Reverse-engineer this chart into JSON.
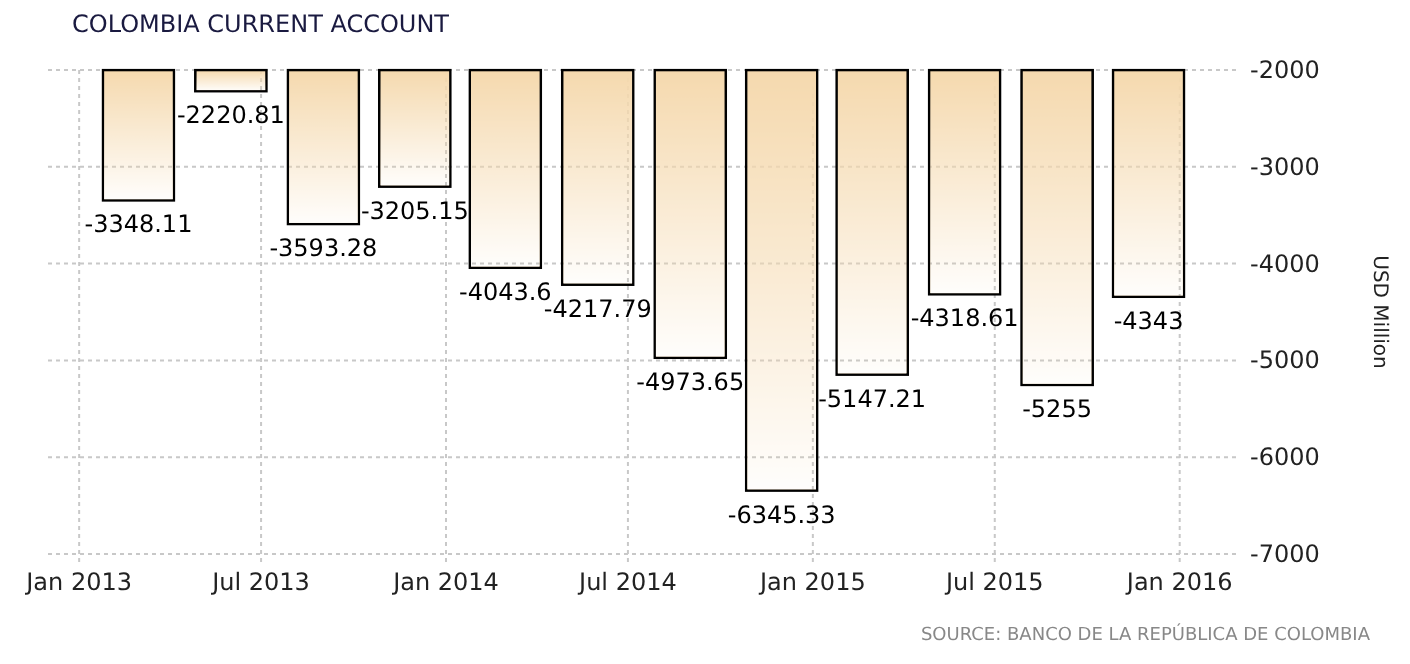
{
  "chart_data": {
    "type": "bar",
    "title": "COLOMBIA CURRENT ACCOUNT",
    "ylabel": "USD Million",
    "x": [
      "2013-03",
      "2013-06",
      "2013-09",
      "2013-12",
      "2014-03",
      "2014-06",
      "2014-09",
      "2014-12",
      "2015-03",
      "2015-06",
      "2015-09",
      "2015-12"
    ],
    "series": [
      {
        "color": "#f5d9ae",
        "values": [
          -3348.11,
          -2220.81,
          -3593.28,
          -3205.15,
          -4043.6,
          -4217.79,
          -4973.65,
          -6345.33,
          -5147.21,
          -4318.61,
          -5255,
          -4343
        ]
      }
    ],
    "data_labels": true,
    "xlim": [
      "2012-12",
      "2016-03"
    ],
    "xticks": [
      {
        "value": "2013-01",
        "label": "Jan 2013"
      },
      {
        "value": "2013-07",
        "label": "Jul 2013"
      },
      {
        "value": "2014-01",
        "label": "Jan 2014"
      },
      {
        "value": "2014-07",
        "label": "Jul 2014"
      },
      {
        "value": "2015-01",
        "label": "Jan 2015"
      },
      {
        "value": "2015-07",
        "label": "Jul 2015"
      },
      {
        "value": "2016-01",
        "label": "Jan 2016"
      }
    ],
    "ylim": [
      -7000,
      -2000
    ],
    "yticks": [
      -7000,
      -6000,
      -5000,
      -4000,
      -3000,
      -2000
    ],
    "grid": true,
    "annotations": [
      "SOURCE: BANCO DE LA REPÚBLICA DE COLOMBIA"
    ]
  }
}
